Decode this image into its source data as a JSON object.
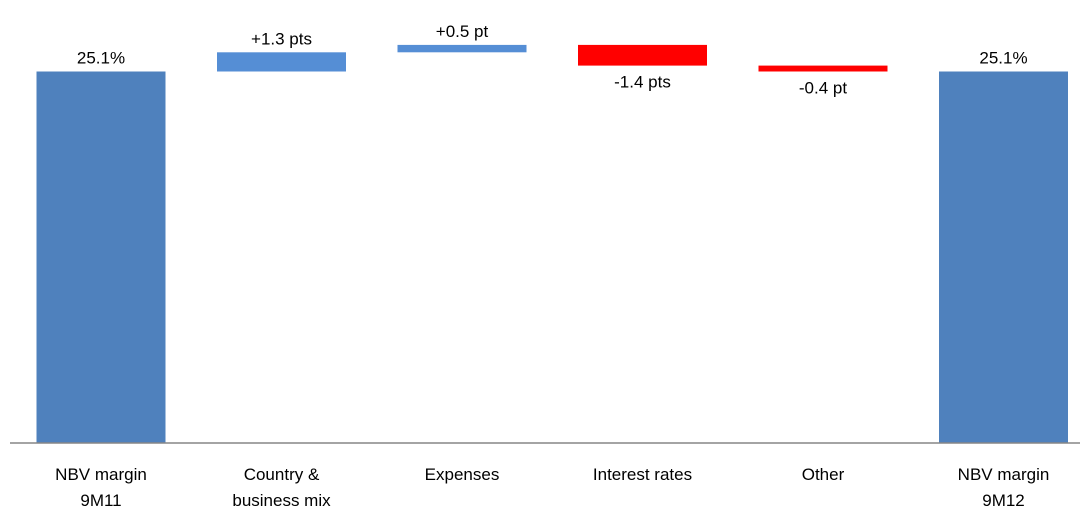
{
  "chart_data": {
    "type": "bar",
    "subtype": "waterfall",
    "categories": [
      [
        "NBV margin",
        "9M11"
      ],
      [
        "Country &",
        "business mix"
      ],
      [
        "Expenses"
      ],
      [
        "Interest rates"
      ],
      [
        "Other"
      ],
      [
        "NBV margin",
        "9M12"
      ]
    ],
    "bars": [
      {
        "kind": "total",
        "start": 0,
        "end": 25.1,
        "label": "25.1%",
        "label_position": "above"
      },
      {
        "kind": "delta",
        "start": 25.1,
        "end": 26.4,
        "label": "+1.3 pts",
        "label_position": "above"
      },
      {
        "kind": "delta",
        "start": 26.4,
        "end": 26.9,
        "label": "+0.5 pt",
        "label_position": "above"
      },
      {
        "kind": "delta",
        "start": 26.9,
        "end": 25.5,
        "label": "-1.4 pts",
        "label_position": "below"
      },
      {
        "kind": "delta",
        "start": 25.5,
        "end": 25.1,
        "label": "-0.4 pt",
        "label_position": "below"
      },
      {
        "kind": "total",
        "start": 0,
        "end": 25.1,
        "label": "25.1%",
        "label_position": "above"
      }
    ],
    "ylim": [
      0,
      28
    ],
    "title": "",
    "xlabel": "",
    "ylabel": "",
    "grid": false,
    "colors": {
      "total": "#4f81bd",
      "increase": "#558ed5",
      "decrease": "#ff0000",
      "axis": "#868686"
    }
  }
}
